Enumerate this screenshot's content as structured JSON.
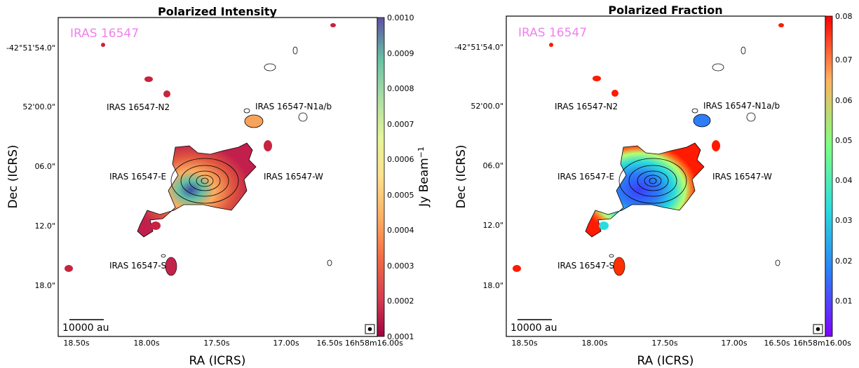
{
  "chart_data": [
    {
      "type": "heatmap",
      "title": "Polarized Intensity",
      "xlabel": "RA (ICRS)",
      "ylabel": "Dec (ICRS)",
      "x_ticks": [
        "18.50s",
        "18.00s",
        "17.50s",
        "17.00s",
        "16.50s",
        "16h58m16.00s"
      ],
      "y_ticks": [
        "-42°51'54.0\"",
        "52'00.0\"",
        "06.0\"",
        "12.0\"",
        "18.0\""
      ],
      "source_label": "IRAS 16547",
      "source_label_color": "#ee82ee",
      "annotations": [
        "IRAS 16547-N2",
        "IRAS 16547-N1a/b",
        "IRAS 16547-E",
        "IRAS 16547-W",
        "IRAS 16547-S"
      ],
      "scale_bar": "10000 au",
      "colorbar": {
        "label": "Jy Beam$^{-1}$",
        "ticks": [
          "0.0001",
          "0.0002",
          "0.0003",
          "0.0004",
          "0.0005",
          "0.0006",
          "0.0007",
          "0.0008",
          "0.0009",
          "0.0010"
        ],
        "range": [
          0.0001,
          0.001
        ],
        "colormap": "Spectral"
      }
    },
    {
      "type": "heatmap",
      "title": "Polarized Fraction",
      "xlabel": "RA (ICRS)",
      "ylabel": "Dec (ICRS)",
      "x_ticks": [
        "18.50s",
        "18.00s",
        "17.50s",
        "17.00s",
        "16.50s",
        "16h58m16.00s"
      ],
      "y_ticks": [
        "-42°51'54.0\"",
        "52'00.0\"",
        "06.0\"",
        "12.0\"",
        "18.0\""
      ],
      "source_label": "IRAS 16547",
      "source_label_color": "#ee82ee",
      "annotations": [
        "IRAS 16547-N2",
        "IRAS 16547-N1a/b",
        "IRAS 16547-E",
        "IRAS 16547-W",
        "IRAS 16547-S"
      ],
      "scale_bar": "10000 au",
      "colorbar": {
        "label": "",
        "ticks": [
          "0.01",
          "0.02",
          "0.03",
          "0.04",
          "0.05",
          "0.06",
          "0.07",
          "0.08"
        ],
        "range": [
          0.0,
          0.08
        ],
        "colormap": "rainbow"
      }
    }
  ]
}
